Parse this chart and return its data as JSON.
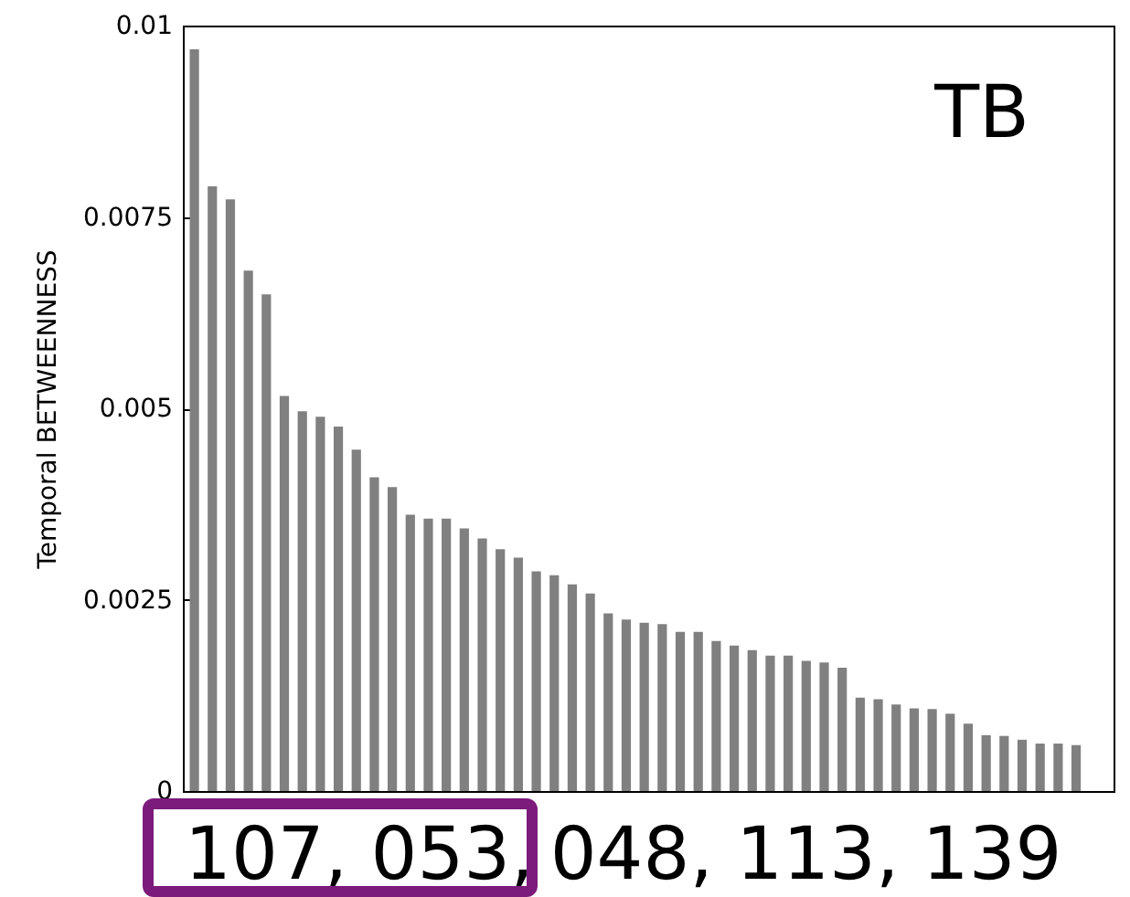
{
  "chart_data": {
    "type": "bar",
    "ylabel": "Temporal BETWEENNESS",
    "categories": [
      null,
      null,
      null,
      null,
      null,
      null,
      null,
      null,
      null,
      null,
      null,
      null,
      null,
      null,
      null,
      null,
      null,
      null,
      null,
      null,
      null,
      null,
      null,
      null,
      null,
      null,
      null,
      null,
      null,
      null,
      null,
      null,
      null,
      null,
      null,
      null,
      null,
      null,
      null,
      null,
      null,
      null,
      null,
      null,
      null,
      null,
      null,
      null,
      null,
      null
    ],
    "values": [
      0.00969,
      0.0079,
      0.00773,
      0.0068,
      0.00649,
      0.00516,
      0.00496,
      0.00489,
      0.00476,
      0.00446,
      0.0041,
      0.00397,
      0.00361,
      0.00356,
      0.00356,
      0.00343,
      0.0033,
      0.00316,
      0.00305,
      0.00287,
      0.00282,
      0.0027,
      0.00258,
      0.00232,
      0.00224,
      0.0022,
      0.00218,
      0.00208,
      0.00208,
      0.00196,
      0.0019,
      0.00184,
      0.00177,
      0.00177,
      0.0017,
      0.00168,
      0.00161,
      0.00122,
      0.0012,
      0.00113,
      0.00108,
      0.00107,
      0.00101,
      0.00088,
      0.00073,
      0.00072,
      0.00067,
      0.00062,
      0.00062,
      0.0006
    ],
    "color": "#808080",
    "ylim": [
      0,
      0.01
    ],
    "yticks": [
      0,
      0.0025,
      0.005,
      0.0075,
      0.01
    ],
    "grid": false,
    "annotations": [
      "TB",
      "107, 053,",
      "048, 113, 139"
    ]
  }
}
